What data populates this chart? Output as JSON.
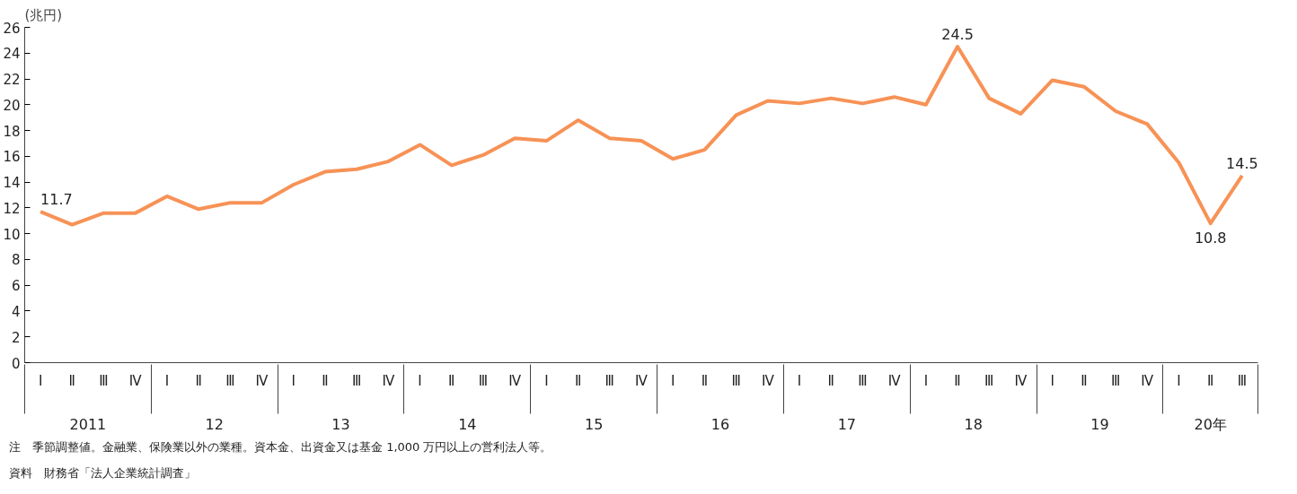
{
  "chart_data": {
    "type": "line",
    "ylabel": "(兆円)",
    "categories": [
      "Ⅰ",
      "Ⅱ",
      "Ⅲ",
      "Ⅳ",
      "Ⅰ",
      "Ⅱ",
      "Ⅲ",
      "Ⅳ",
      "Ⅰ",
      "Ⅱ",
      "Ⅲ",
      "Ⅳ",
      "Ⅰ",
      "Ⅱ",
      "Ⅲ",
      "Ⅳ",
      "Ⅰ",
      "Ⅱ",
      "Ⅲ",
      "Ⅳ",
      "Ⅰ",
      "Ⅱ",
      "Ⅲ",
      "Ⅳ",
      "Ⅰ",
      "Ⅱ",
      "Ⅲ",
      "Ⅳ",
      "Ⅰ",
      "Ⅱ",
      "Ⅲ",
      "Ⅳ",
      "Ⅰ",
      "Ⅱ",
      "Ⅲ",
      "Ⅳ",
      "Ⅰ",
      "Ⅱ",
      "Ⅲ"
    ],
    "series": [
      {
        "color": "#f79256",
        "values": [
          11.7,
          10.7,
          11.6,
          11.6,
          12.9,
          11.9,
          12.4,
          12.4,
          13.8,
          14.8,
          15.0,
          15.6,
          16.9,
          15.3,
          16.1,
          17.4,
          17.2,
          18.8,
          17.4,
          17.2,
          15.8,
          16.5,
          19.2,
          20.3,
          20.1,
          20.5,
          20.1,
          20.6,
          20.0,
          24.5,
          20.5,
          19.3,
          21.9,
          21.4,
          19.5,
          18.5,
          15.5,
          10.8,
          14.5
        ],
        "value_labels": [
          "11.7",
          null,
          null,
          null,
          null,
          null,
          null,
          null,
          null,
          null,
          null,
          null,
          null,
          null,
          null,
          null,
          null,
          null,
          null,
          null,
          null,
          null,
          null,
          null,
          null,
          null,
          null,
          null,
          null,
          "24.5",
          null,
          null,
          null,
          null,
          null,
          null,
          null,
          "10.8",
          "14.5"
        ]
      }
    ],
    "ylim": [
      0,
      26
    ],
    "yticks": [
      0,
      2,
      4,
      6,
      8,
      10,
      12,
      14,
      16,
      18,
      20,
      22,
      24,
      26
    ],
    "annotations": [
      {
        "text": "2011"
      },
      {
        "text": "12"
      },
      {
        "text": "13"
      },
      {
        "text": "14"
      },
      {
        "text": "15"
      },
      {
        "text": "16"
      },
      {
        "text": "17"
      },
      {
        "text": "18"
      },
      {
        "text": "19"
      },
      {
        "text": "20年"
      },
      "注　季節調整値。金融業、保険業以外の業種。資本金、出資金又は基金 1,000 万円以上の営利法人等。",
      "資料　財務省「法人企業統計調査」"
    ]
  }
}
